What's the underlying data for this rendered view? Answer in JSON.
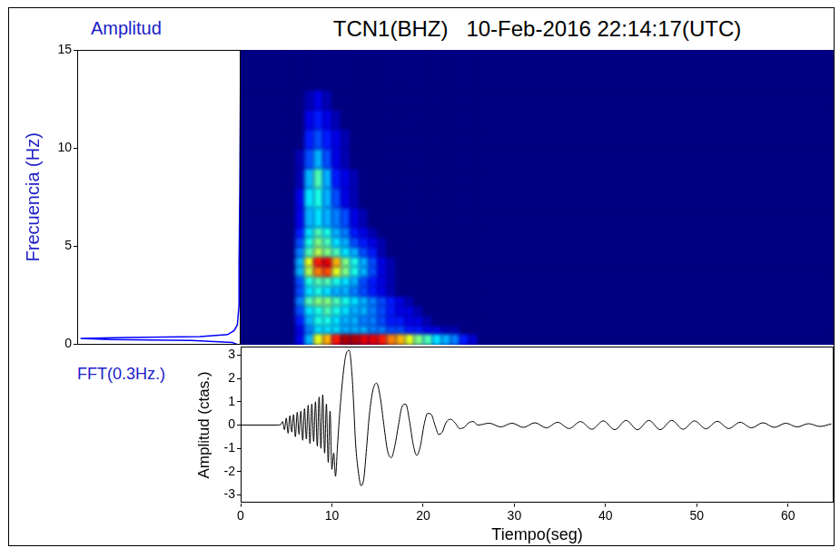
{
  "chart_data": [
    {
      "type": "line",
      "title": "Amplitud",
      "annotation": "FFT(0.3Hz.)",
      "y_label": "Frecuencia (Hz)",
      "frequency": [
        0,
        0.1,
        0.2,
        0.25,
        0.3,
        0.35,
        0.4,
        0.5,
        0.7,
        1,
        2,
        4,
        8,
        15
      ],
      "amplitude": [
        0.02,
        0.05,
        0.3,
        0.8,
        0.98,
        0.7,
        0.25,
        0.08,
        0.04,
        0.02,
        0.01,
        0.01,
        0.005,
        0
      ],
      "xlim": [
        1,
        0
      ],
      "ylim": [
        0,
        15
      ],
      "yticks": [
        0,
        5,
        10,
        15
      ],
      "tick_labels": "y",
      "grid": false,
      "color": "#0000ff"
    },
    {
      "type": "heatmap",
      "title": "TCN1(BHZ)   10-Feb-2016 22:14:17(UTC)",
      "time_edges": [
        0,
        5,
        6,
        7,
        8,
        9,
        10,
        11,
        12,
        13,
        14,
        15,
        16,
        17,
        18,
        19,
        20,
        21,
        22,
        23,
        24,
        25,
        26,
        65
      ],
      "frequency_edges": [
        0,
        0.6,
        1,
        1.5,
        2,
        2.5,
        3,
        3.5,
        4,
        4.5,
        5,
        5.5,
        6,
        7,
        8,
        9,
        10,
        11,
        12,
        13,
        15
      ],
      "cells": [
        [
          0,
          0,
          0.1,
          0.3,
          0.6,
          0.7,
          0.85,
          0.95,
          0.95,
          0.9,
          0.9,
          0.85,
          0.75,
          0.7,
          0.6,
          0.5,
          0.45,
          0.35,
          0.3,
          0.25,
          0.15,
          0.08,
          0
        ],
        [
          0,
          0,
          0.1,
          0.25,
          0.35,
          0.35,
          0.35,
          0.3,
          0.3,
          0.3,
          0.25,
          0.25,
          0.2,
          0.2,
          0.15,
          0.15,
          0.1,
          0.1,
          0.05,
          0.05,
          0,
          0,
          0
        ],
        [
          0,
          0,
          0.15,
          0.3,
          0.4,
          0.4,
          0.35,
          0.3,
          0.3,
          0.25,
          0.25,
          0.2,
          0.15,
          0.15,
          0.1,
          0.1,
          0.05,
          0,
          0,
          0,
          0,
          0,
          0
        ],
        [
          0,
          0,
          0.2,
          0.35,
          0.4,
          0.45,
          0.4,
          0.35,
          0.3,
          0.3,
          0.25,
          0.2,
          0.15,
          0.1,
          0.1,
          0.05,
          0,
          0,
          0,
          0,
          0,
          0,
          0
        ],
        [
          0,
          0,
          0.25,
          0.45,
          0.5,
          0.5,
          0.45,
          0.4,
          0.35,
          0.3,
          0.25,
          0.2,
          0.15,
          0.1,
          0.05,
          0,
          0,
          0,
          0,
          0,
          0,
          0,
          0
        ],
        [
          0,
          0,
          0.2,
          0.35,
          0.4,
          0.35,
          0.3,
          0.3,
          0.25,
          0.2,
          0.15,
          0.1,
          0.05,
          0,
          0,
          0,
          0,
          0,
          0,
          0,
          0,
          0,
          0
        ],
        [
          0,
          0,
          0.2,
          0.4,
          0.45,
          0.45,
          0.4,
          0.35,
          0.3,
          0.2,
          0.15,
          0.1,
          0.05,
          0,
          0,
          0,
          0,
          0,
          0,
          0,
          0,
          0,
          0
        ],
        [
          0,
          0,
          0.3,
          0.55,
          0.75,
          0.8,
          0.6,
          0.5,
          0.4,
          0.3,
          0.2,
          0.1,
          0.05,
          0,
          0,
          0,
          0,
          0,
          0,
          0,
          0,
          0,
          0
        ],
        [
          0,
          0,
          0.3,
          0.6,
          0.85,
          0.9,
          0.7,
          0.5,
          0.4,
          0.3,
          0.2,
          0.1,
          0.05,
          0,
          0,
          0,
          0,
          0,
          0,
          0,
          0,
          0,
          0
        ],
        [
          0,
          0,
          0.25,
          0.45,
          0.55,
          0.5,
          0.45,
          0.35,
          0.3,
          0.2,
          0.15,
          0.05,
          0,
          0,
          0,
          0,
          0,
          0,
          0,
          0,
          0,
          0,
          0
        ],
        [
          0,
          0,
          0.2,
          0.4,
          0.5,
          0.45,
          0.35,
          0.3,
          0.2,
          0.15,
          0.1,
          0.05,
          0,
          0,
          0,
          0,
          0,
          0,
          0,
          0,
          0,
          0,
          0
        ],
        [
          0,
          0,
          0.15,
          0.35,
          0.45,
          0.4,
          0.3,
          0.25,
          0.15,
          0.1,
          0.05,
          0,
          0,
          0,
          0,
          0,
          0,
          0,
          0,
          0,
          0,
          0,
          0
        ],
        [
          0,
          0,
          0.1,
          0.3,
          0.35,
          0.3,
          0.25,
          0.2,
          0.1,
          0.05,
          0,
          0,
          0,
          0,
          0,
          0,
          0,
          0,
          0,
          0,
          0,
          0,
          0
        ],
        [
          0,
          0,
          0.1,
          0.35,
          0.4,
          0.3,
          0.2,
          0.1,
          0.05,
          0,
          0,
          0,
          0,
          0,
          0,
          0,
          0,
          0,
          0,
          0,
          0,
          0,
          0
        ],
        [
          0,
          0,
          0.05,
          0.3,
          0.45,
          0.3,
          0.15,
          0.1,
          0.05,
          0,
          0,
          0,
          0,
          0,
          0,
          0,
          0,
          0,
          0,
          0,
          0,
          0,
          0
        ],
        [
          0,
          0,
          0.05,
          0.2,
          0.3,
          0.2,
          0.1,
          0.05,
          0,
          0,
          0,
          0,
          0,
          0,
          0,
          0,
          0,
          0,
          0,
          0,
          0,
          0,
          0
        ],
        [
          0,
          0,
          0,
          0.15,
          0.2,
          0.15,
          0.1,
          0.05,
          0,
          0,
          0,
          0,
          0,
          0,
          0,
          0,
          0,
          0,
          0,
          0,
          0,
          0,
          0
        ],
        [
          0,
          0,
          0,
          0.1,
          0.15,
          0.1,
          0.05,
          0,
          0,
          0,
          0,
          0,
          0,
          0,
          0,
          0,
          0,
          0,
          0,
          0,
          0,
          0,
          0
        ],
        [
          0,
          0,
          0,
          0.05,
          0.1,
          0.05,
          0,
          0,
          0,
          0,
          0,
          0,
          0,
          0,
          0,
          0,
          0,
          0,
          0,
          0,
          0,
          0,
          0
        ],
        [
          0,
          0,
          0,
          0,
          0,
          0,
          0,
          0,
          0,
          0,
          0,
          0,
          0,
          0,
          0,
          0,
          0,
          0,
          0,
          0,
          0,
          0,
          0
        ]
      ],
      "xlim": [
        0,
        65
      ],
      "ylim": [
        0,
        15
      ],
      "tick_labels": false
    },
    {
      "type": "line",
      "x_label": "Tiempo(seg)",
      "y_label": "Amplitud (ctas.)",
      "x": [
        0,
        2,
        4,
        4.4,
        4.6,
        4.8,
        5.0,
        5.2,
        5.4,
        5.6,
        5.8,
        6.0,
        6.2,
        6.4,
        6.6,
        6.8,
        7.0,
        7.2,
        7.4,
        7.6,
        7.8,
        8.0,
        8.2,
        8.4,
        8.6,
        8.8,
        9.0,
        9.2,
        9.4,
        9.6,
        9.8,
        10.0,
        10.2,
        10.4,
        10.6,
        10.8,
        11.0,
        11.3,
        11.6,
        11.9,
        12.2,
        12.4,
        12.6,
        12.9,
        13.2,
        13.5,
        13.8,
        14.1,
        14.5,
        14.9,
        15.3,
        15.7,
        16.1,
        16.5,
        16.9,
        17.3,
        17.7,
        18.1,
        18.5,
        18.9,
        19.3,
        19.7,
        20.1,
        20.5,
        20.9,
        21.3,
        21.7,
        22.1,
        22.5,
        23.0,
        23.5,
        24.0,
        24.5,
        25.0,
        25.5,
        26.0,
        27.25,
        28.5,
        29.75,
        31.0,
        32.25,
        33.5,
        34.75,
        36.0,
        37.25,
        38.5,
        39.75,
        41.0,
        42.25,
        43.5,
        44.75,
        46.0,
        47.25,
        48.5,
        49.75,
        51.0,
        52.25,
        53.5,
        54.75,
        56.0,
        57.25,
        58.5,
        59.75,
        61.0,
        62.25,
        63.5,
        64.75
      ],
      "values": [
        0,
        0,
        0,
        0.02,
        0.15,
        -0.2,
        0.3,
        -0.35,
        0.4,
        -0.3,
        0.45,
        -0.5,
        0.55,
        -0.4,
        0.6,
        -0.65,
        0.7,
        -0.6,
        0.85,
        -0.8,
        0.9,
        -0.7,
        1.0,
        -0.9,
        1.2,
        -1.0,
        1.3,
        -1.2,
        0.9,
        -1.6,
        0.6,
        -1.9,
        -1.2,
        -2.2,
        -1.0,
        0.2,
        1.2,
        2.4,
        3.1,
        3.2,
        2.2,
        0.8,
        -0.8,
        -2.0,
        -2.6,
        -2.3,
        -1.0,
        0.4,
        1.5,
        1.8,
        1.2,
        0,
        -1.1,
        -1.4,
        -0.9,
        0,
        0.8,
        0.9,
        0.2,
        -0.8,
        -1.3,
        -0.9,
        0,
        0.5,
        0.45,
        0,
        -0.4,
        -0.3,
        0.1,
        0.25,
        0.1,
        -0.15,
        -0.1,
        0.1,
        0.15,
        0,
        0.08,
        -0.08,
        0.08,
        -0.1,
        0.1,
        -0.12,
        0.12,
        -0.15,
        0.15,
        -0.18,
        0.18,
        -0.2,
        0.2,
        -0.2,
        0.2,
        -0.2,
        0.2,
        -0.18,
        0.18,
        -0.16,
        0.16,
        -0.15,
        0.12,
        -0.12,
        0.1,
        -0.1,
        0.08,
        -0.08,
        0.06,
        -0.06,
        0.05
      ],
      "xlim": [
        0,
        65
      ],
      "xticks": [
        0,
        10,
        20,
        30,
        40,
        50,
        60
      ],
      "ylim": [
        -3.35,
        3.35
      ],
      "yticks": [
        -3,
        -2,
        -1,
        0,
        1,
        2,
        3
      ],
      "grid": false,
      "color": "#000000"
    }
  ]
}
